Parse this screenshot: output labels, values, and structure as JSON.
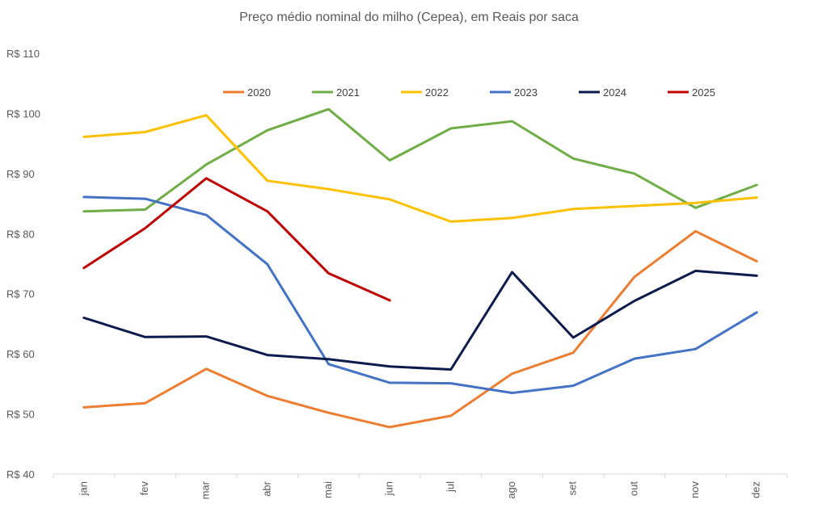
{
  "chart_data": {
    "type": "line",
    "title": "Preço médio nominal do milho (Cepea), em Reais por saca",
    "categories": [
      "jan",
      "fev",
      "mar",
      "abr",
      "mai",
      "jun",
      "jul",
      "ago",
      "set",
      "out",
      "nov",
      "dez"
    ],
    "yticks": [
      "R$ 40",
      "R$ 50",
      "R$ 60",
      "R$ 70",
      "R$ 80",
      "R$ 90",
      "R$ 100",
      "R$ 110"
    ],
    "ylim": [
      40,
      110
    ],
    "grid": false,
    "legend_position": "top",
    "series": [
      {
        "name": "2020",
        "color": "#ED7D31",
        "values": [
          51.1,
          51.8,
          57.5,
          53.0,
          50.2,
          47.8,
          49.7,
          56.7,
          60.2,
          72.8,
          80.4,
          75.4
        ]
      },
      {
        "name": "2021",
        "color": "#70AD47",
        "values": [
          83.7,
          84.0,
          91.5,
          97.2,
          100.7,
          92.2,
          97.5,
          98.7,
          92.5,
          90.0,
          84.3,
          88.1
        ]
      },
      {
        "name": "2022",
        "color": "#FFC000",
        "values": [
          96.1,
          96.9,
          99.7,
          88.8,
          87.4,
          85.7,
          82.0,
          82.6,
          84.1,
          84.6,
          85.1,
          86.0
        ]
      },
      {
        "name": "2023",
        "color": "#4472C4",
        "values": [
          86.1,
          85.8,
          83.1,
          74.9,
          58.3,
          55.2,
          55.1,
          53.5,
          54.7,
          59.2,
          60.8,
          66.9
        ]
      },
      {
        "name": "2024",
        "color": "#0D1B4C",
        "values": [
          66.0,
          62.8,
          62.9,
          59.8,
          59.1,
          57.9,
          57.4,
          73.6,
          62.7,
          68.8,
          73.8,
          73.0
        ]
      },
      {
        "name": "2025",
        "color": "#C00000",
        "values": [
          74.3,
          80.9,
          89.2,
          83.7,
          73.4,
          68.9,
          null,
          null,
          null,
          null,
          null,
          null
        ]
      }
    ]
  }
}
